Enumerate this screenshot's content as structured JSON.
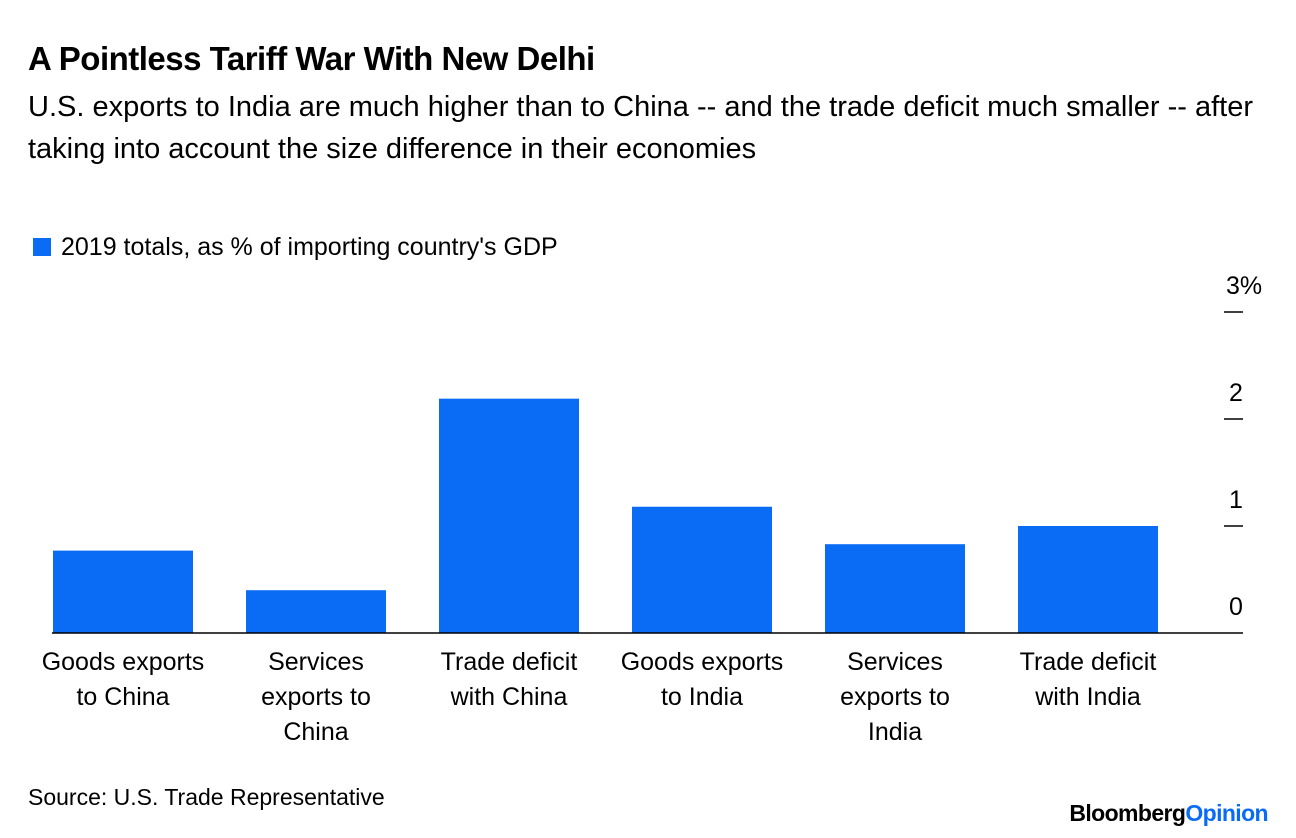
{
  "header": {
    "title": "A Pointless Tariff War With New Delhi",
    "subtitle": "U.S. exports to India are much higher than to China -- and the trade deficit much smaller -- after taking into account the size difference in their economies"
  },
  "legend": {
    "label": "2019 totals, as % of importing country's GDP"
  },
  "colors": {
    "bar": "#0a6cf5",
    "axis": "#000000"
  },
  "chart_data": {
    "type": "bar",
    "title": "A Pointless Tariff War With New Delhi",
    "categories": [
      "Goods exports to China",
      "Services exports to China",
      "Trade deficit with China",
      "Goods exports to India",
      "Services exports to India",
      "Trade deficit with India"
    ],
    "category_lines": [
      [
        "Goods exports",
        "to China"
      ],
      [
        "Services",
        "exports to",
        "China"
      ],
      [
        "Trade deficit",
        "with China"
      ],
      [
        "Goods exports",
        "to India"
      ],
      [
        "Services",
        "exports to",
        "India"
      ],
      [
        "Trade deficit",
        "with India"
      ]
    ],
    "series": [
      {
        "name": "2019 totals, as % of importing country's GDP",
        "values": [
          0.77,
          0.4,
          2.19,
          1.18,
          0.83,
          1.0
        ]
      }
    ],
    "ylim": [
      0,
      3
    ],
    "yticks": [
      0,
      1,
      2,
      3
    ],
    "ytick_labels": [
      "0",
      "1",
      "2",
      "3%"
    ],
    "xlabel": "",
    "ylabel": "",
    "grid": false,
    "legend_position": "top-left"
  },
  "footer": {
    "source": "Source: U.S. Trade Representative",
    "brand_part1": "Bloomberg",
    "brand_part2": "Opinion"
  }
}
